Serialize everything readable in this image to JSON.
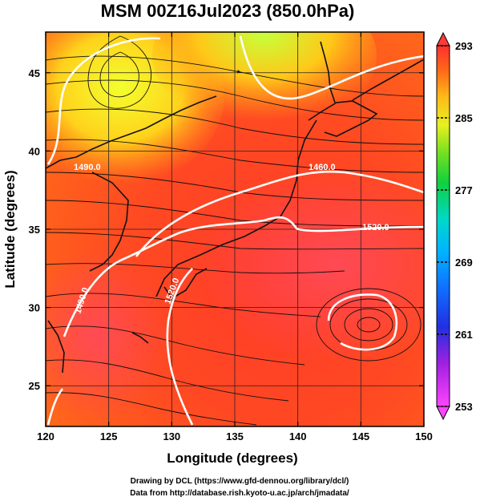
{
  "title": "MSM 00Z16Jul2023 (850.0hPa)",
  "axes": {
    "xlabel": "Longitude (degrees)",
    "ylabel": "Latitude  (degrees)",
    "x_ticks": [
      "120",
      "125",
      "130",
      "135",
      "140",
      "145",
      "150"
    ],
    "y_ticks": [
      "25",
      "30",
      "35",
      "40",
      "45"
    ],
    "xlim": [
      120,
      150
    ],
    "ylim": [
      22.4,
      47.6
    ]
  },
  "colorbar": {
    "labels": [
      "293",
      "285",
      "277",
      "269",
      "261",
      "253"
    ],
    "range": [
      253,
      293
    ]
  },
  "contours": {
    "labels": [
      "1460.0",
      "1520.0",
      "1490.0",
      "1520.0",
      "1490.0"
    ]
  },
  "credits": {
    "line1": "Drawing by DCL (https://www.gfd-dennou.org/library/dcl/)",
    "line2": "Data from http://database.rish.kyoto-u.ac.jp/arch/jmadata/"
  }
}
